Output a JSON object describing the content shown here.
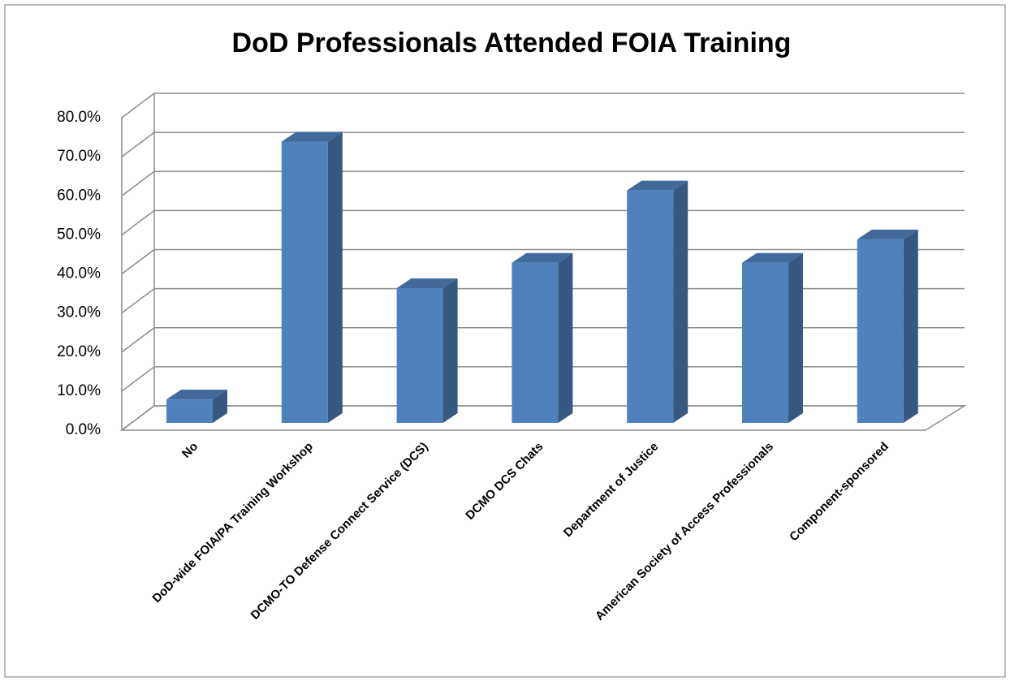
{
  "chart_data": {
    "type": "bar3d",
    "title": "DoD Professionals Attended FOIA Training",
    "categories": [
      "No",
      "DoD-wide FOIA/PA Training Workshop",
      "DCMO-TO Defense Connect Service (DCS)",
      "DCMO DCS Chats",
      "Department of Justice",
      "American Society of Access Professionals",
      "Component-sponsored"
    ],
    "values": [
      6,
      72,
      34.5,
      41,
      59.5,
      41,
      47
    ],
    "color": "#4f81bd",
    "ylim": [
      0,
      80
    ],
    "yticks": [
      {
        "value": 0,
        "label": "0.0%"
      },
      {
        "value": 10,
        "label": "10.0%"
      },
      {
        "value": 20,
        "label": "20.0%"
      },
      {
        "value": 30,
        "label": "30.0%"
      },
      {
        "value": 40,
        "label": "40.0%"
      },
      {
        "value": 50,
        "label": "50.0%"
      },
      {
        "value": 60,
        "label": "60.0%"
      },
      {
        "value": 70,
        "label": "70.0%"
      },
      {
        "value": 80,
        "label": "80.0%"
      }
    ],
    "grid": true
  }
}
